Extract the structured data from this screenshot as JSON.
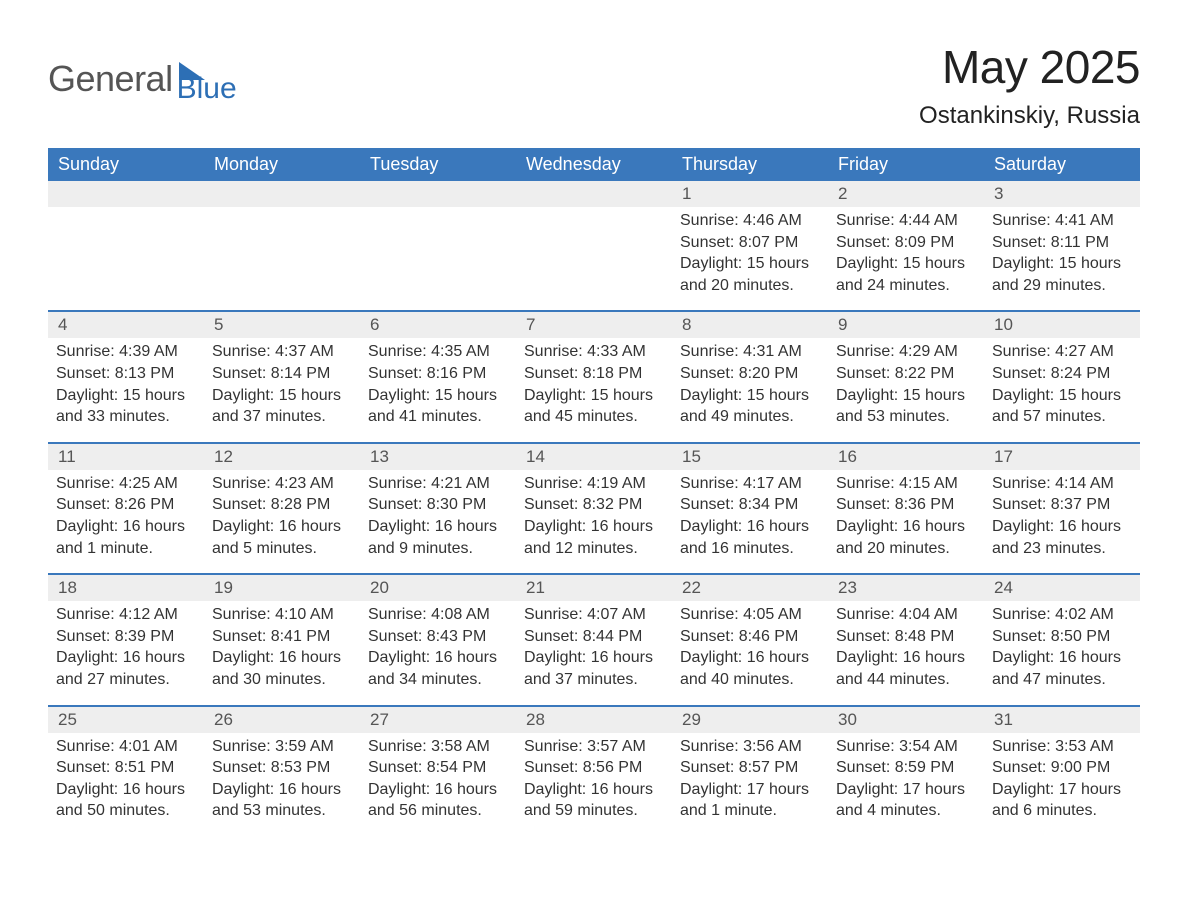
{
  "logo": {
    "word1": "General",
    "word2": "Blue"
  },
  "title": "May 2025",
  "location": "Ostankinskiy, Russia",
  "colors": {
    "header_bg": "#3a78bc",
    "header_text": "#ffffff",
    "rule": "#3a78bc",
    "daynum_bg": "#eeeeee",
    "body_text": "#333333",
    "logo_gray": "#555555",
    "logo_blue": "#2d6fb5",
    "background": "#ffffff"
  },
  "weekdays": [
    "Sunday",
    "Monday",
    "Tuesday",
    "Wednesday",
    "Thursday",
    "Friday",
    "Saturday"
  ],
  "labels": {
    "sunrise": "Sunrise",
    "sunset": "Sunset",
    "daylight": "Daylight"
  },
  "weeks": [
    [
      {
        "empty": true
      },
      {
        "empty": true
      },
      {
        "empty": true
      },
      {
        "empty": true
      },
      {
        "day": "1",
        "sunrise": "4:46 AM",
        "sunset": "8:07 PM",
        "daylight": "15 hours and 20 minutes."
      },
      {
        "day": "2",
        "sunrise": "4:44 AM",
        "sunset": "8:09 PM",
        "daylight": "15 hours and 24 minutes."
      },
      {
        "day": "3",
        "sunrise": "4:41 AM",
        "sunset": "8:11 PM",
        "daylight": "15 hours and 29 minutes."
      }
    ],
    [
      {
        "day": "4",
        "sunrise": "4:39 AM",
        "sunset": "8:13 PM",
        "daylight": "15 hours and 33 minutes."
      },
      {
        "day": "5",
        "sunrise": "4:37 AM",
        "sunset": "8:14 PM",
        "daylight": "15 hours and 37 minutes."
      },
      {
        "day": "6",
        "sunrise": "4:35 AM",
        "sunset": "8:16 PM",
        "daylight": "15 hours and 41 minutes."
      },
      {
        "day": "7",
        "sunrise": "4:33 AM",
        "sunset": "8:18 PM",
        "daylight": "15 hours and 45 minutes."
      },
      {
        "day": "8",
        "sunrise": "4:31 AM",
        "sunset": "8:20 PM",
        "daylight": "15 hours and 49 minutes."
      },
      {
        "day": "9",
        "sunrise": "4:29 AM",
        "sunset": "8:22 PM",
        "daylight": "15 hours and 53 minutes."
      },
      {
        "day": "10",
        "sunrise": "4:27 AM",
        "sunset": "8:24 PM",
        "daylight": "15 hours and 57 minutes."
      }
    ],
    [
      {
        "day": "11",
        "sunrise": "4:25 AM",
        "sunset": "8:26 PM",
        "daylight": "16 hours and 1 minute."
      },
      {
        "day": "12",
        "sunrise": "4:23 AM",
        "sunset": "8:28 PM",
        "daylight": "16 hours and 5 minutes."
      },
      {
        "day": "13",
        "sunrise": "4:21 AM",
        "sunset": "8:30 PM",
        "daylight": "16 hours and 9 minutes."
      },
      {
        "day": "14",
        "sunrise": "4:19 AM",
        "sunset": "8:32 PM",
        "daylight": "16 hours and 12 minutes."
      },
      {
        "day": "15",
        "sunrise": "4:17 AM",
        "sunset": "8:34 PM",
        "daylight": "16 hours and 16 minutes."
      },
      {
        "day": "16",
        "sunrise": "4:15 AM",
        "sunset": "8:36 PM",
        "daylight": "16 hours and 20 minutes."
      },
      {
        "day": "17",
        "sunrise": "4:14 AM",
        "sunset": "8:37 PM",
        "daylight": "16 hours and 23 minutes."
      }
    ],
    [
      {
        "day": "18",
        "sunrise": "4:12 AM",
        "sunset": "8:39 PM",
        "daylight": "16 hours and 27 minutes."
      },
      {
        "day": "19",
        "sunrise": "4:10 AM",
        "sunset": "8:41 PM",
        "daylight": "16 hours and 30 minutes."
      },
      {
        "day": "20",
        "sunrise": "4:08 AM",
        "sunset": "8:43 PM",
        "daylight": "16 hours and 34 minutes."
      },
      {
        "day": "21",
        "sunrise": "4:07 AM",
        "sunset": "8:44 PM",
        "daylight": "16 hours and 37 minutes."
      },
      {
        "day": "22",
        "sunrise": "4:05 AM",
        "sunset": "8:46 PM",
        "daylight": "16 hours and 40 minutes."
      },
      {
        "day": "23",
        "sunrise": "4:04 AM",
        "sunset": "8:48 PM",
        "daylight": "16 hours and 44 minutes."
      },
      {
        "day": "24",
        "sunrise": "4:02 AM",
        "sunset": "8:50 PM",
        "daylight": "16 hours and 47 minutes."
      }
    ],
    [
      {
        "day": "25",
        "sunrise": "4:01 AM",
        "sunset": "8:51 PM",
        "daylight": "16 hours and 50 minutes."
      },
      {
        "day": "26",
        "sunrise": "3:59 AM",
        "sunset": "8:53 PM",
        "daylight": "16 hours and 53 minutes."
      },
      {
        "day": "27",
        "sunrise": "3:58 AM",
        "sunset": "8:54 PM",
        "daylight": "16 hours and 56 minutes."
      },
      {
        "day": "28",
        "sunrise": "3:57 AM",
        "sunset": "8:56 PM",
        "daylight": "16 hours and 59 minutes."
      },
      {
        "day": "29",
        "sunrise": "3:56 AM",
        "sunset": "8:57 PM",
        "daylight": "17 hours and 1 minute."
      },
      {
        "day": "30",
        "sunrise": "3:54 AM",
        "sunset": "8:59 PM",
        "daylight": "17 hours and 4 minutes."
      },
      {
        "day": "31",
        "sunrise": "3:53 AM",
        "sunset": "9:00 PM",
        "daylight": "17 hours and 6 minutes."
      }
    ]
  ]
}
